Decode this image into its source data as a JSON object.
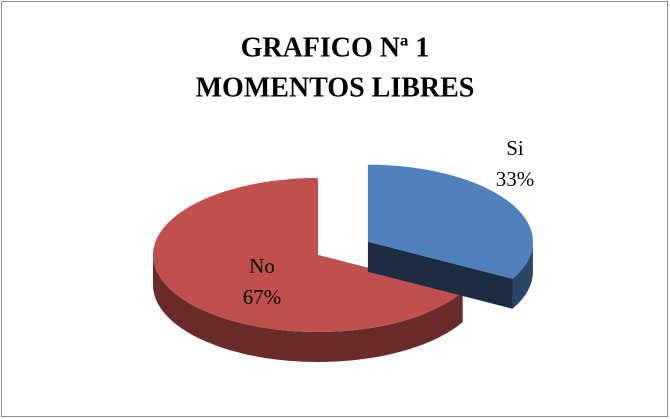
{
  "chart_data": {
    "type": "pie3d",
    "title": [
      "GRAFICO Nª 1",
      "MOMENTOS LIBRES"
    ],
    "categories": [
      "Si",
      "No"
    ],
    "values": [
      33,
      67
    ],
    "value_labels": [
      "33%",
      "67%"
    ],
    "colors": [
      "#4f81bd",
      "#c0504d"
    ],
    "exploded": [
      true,
      false
    ]
  }
}
